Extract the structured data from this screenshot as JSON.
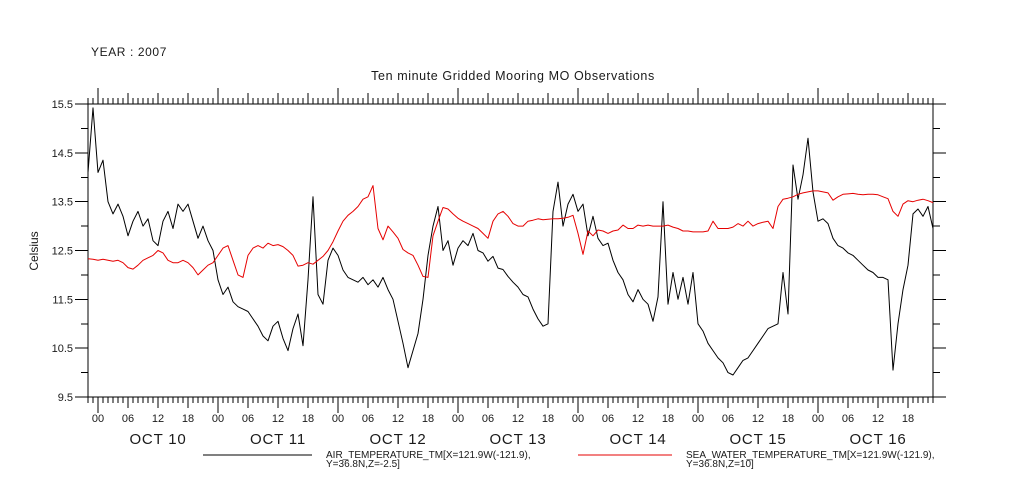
{
  "header": {
    "year_label": "YEAR : 2007",
    "title": "Ten minute Gridded Mooring MO Observations"
  },
  "y_axis": {
    "label": "Celsius",
    "min": 9.5,
    "max": 15.5,
    "major_tick_step": 1.0,
    "minor_tick_step": 0.5,
    "tick_labels": [
      "9.5",
      "10.5",
      "11.5",
      "12.5",
      "13.5",
      "14.5",
      "15.5"
    ]
  },
  "x_axis": {
    "hour_tick_labels": [
      "00",
      "06",
      "12",
      "18"
    ],
    "day_labels": [
      "OCT 10",
      "OCT 11",
      "OCT 12",
      "OCT 13",
      "OCT 14",
      "OCT 15",
      "OCT 16"
    ],
    "minor_tick_interval_hours": 1,
    "labeled_tick_interval_hours": 6
  },
  "legend": {
    "air": {
      "label_line1": "AIR_TEMPERATURE_TM[X=121.9W(-121.9),",
      "label_line2": "Y=36.8N,Z=-2.5]",
      "color": "#000000"
    },
    "sea": {
      "label_line1": "SEA_WATER_TEMPERATURE_TM[X=121.9W(-121.9),",
      "label_line2": "Y=36.8N,Z=10]",
      "color": "#e60000"
    }
  },
  "colors": {
    "air": "#000000",
    "sea": "#e60000",
    "axis": "#000000",
    "background": "#ffffff"
  },
  "chart_data": {
    "type": "line",
    "title": "Ten minute Gridded Mooring MO Observations",
    "ylabel": "Celsius",
    "ylim": [
      9.5,
      15.5
    ],
    "x_unit": "hours since 2007-10-10 00:00",
    "x_start": -2,
    "x_step": 1,
    "x_end": 167,
    "grid": false,
    "legend_position": "bottom",
    "series": [
      {
        "name": "AIR_TEMPERATURE_TM[X=121.9W(-121.9), Y=36.8N,Z=-2.5]",
        "color": "#000000",
        "values": [
          14.1,
          15.42,
          14.1,
          14.35,
          13.5,
          13.25,
          13.45,
          13.2,
          12.8,
          13.1,
          13.3,
          13.0,
          13.15,
          12.7,
          12.6,
          13.1,
          13.3,
          12.95,
          13.45,
          13.3,
          13.45,
          13.1,
          12.75,
          13.0,
          12.7,
          12.5,
          11.9,
          11.6,
          11.75,
          11.45,
          11.35,
          11.3,
          11.25,
          11.1,
          10.95,
          10.75,
          10.65,
          10.95,
          11.05,
          10.7,
          10.45,
          10.9,
          11.2,
          10.55,
          11.9,
          13.6,
          11.6,
          11.4,
          12.3,
          12.55,
          12.4,
          12.1,
          11.95,
          11.9,
          11.85,
          11.95,
          11.8,
          11.9,
          11.75,
          11.95,
          11.7,
          11.5,
          11.05,
          10.6,
          10.1,
          10.45,
          10.8,
          11.5,
          12.4,
          13.0,
          13.4,
          12.5,
          12.7,
          12.2,
          12.55,
          12.7,
          12.6,
          12.85,
          12.5,
          12.45,
          12.28,
          12.38,
          12.14,
          12.11,
          11.97,
          11.85,
          11.75,
          11.6,
          11.55,
          11.3,
          11.1,
          10.95,
          11.0,
          13.3,
          13.9,
          13.0,
          13.45,
          13.65,
          13.3,
          13.45,
          12.8,
          13.2,
          12.75,
          12.6,
          12.65,
          12.3,
          12.05,
          11.9,
          11.6,
          11.45,
          11.7,
          11.5,
          11.4,
          11.05,
          11.55,
          13.5,
          11.4,
          12.05,
          11.5,
          11.95,
          11.4,
          12.05,
          11.0,
          10.85,
          10.6,
          10.45,
          10.3,
          10.2,
          10.0,
          9.95,
          10.1,
          10.25,
          10.3,
          10.45,
          10.6,
          10.75,
          10.9,
          10.95,
          11.0,
          12.05,
          11.2,
          14.25,
          13.55,
          14.05,
          14.8,
          13.7,
          13.1,
          13.15,
          13.05,
          12.75,
          12.6,
          12.55,
          12.45,
          12.4,
          12.3,
          12.2,
          12.1,
          12.05,
          11.95,
          11.95,
          11.9,
          10.05,
          11.0,
          11.7,
          12.2,
          13.25,
          13.35,
          13.2,
          13.4,
          12.95
        ]
      },
      {
        "name": "SEA_WATER_TEMPERATURE_TM[X=121.9W(-121.9), Y=36.8N,Z=10]",
        "color": "#e60000",
        "values": [
          12.33,
          12.32,
          12.3,
          12.32,
          12.3,
          12.28,
          12.3,
          12.25,
          12.15,
          12.12,
          12.2,
          12.3,
          12.35,
          12.4,
          12.5,
          12.45,
          12.3,
          12.25,
          12.25,
          12.3,
          12.25,
          12.15,
          12.0,
          12.1,
          12.2,
          12.25,
          12.4,
          12.55,
          12.6,
          12.3,
          12.0,
          11.95,
          12.4,
          12.55,
          12.6,
          12.55,
          12.65,
          12.6,
          12.62,
          12.58,
          12.5,
          12.4,
          12.18,
          12.2,
          12.25,
          12.22,
          12.3,
          12.38,
          12.5,
          12.68,
          12.9,
          13.1,
          13.22,
          13.3,
          13.4,
          13.55,
          13.6,
          13.83,
          12.95,
          12.72,
          13.0,
          12.88,
          12.75,
          12.52,
          12.45,
          12.4,
          12.2,
          11.97,
          11.95,
          12.8,
          13.1,
          13.38,
          13.35,
          13.25,
          13.16,
          13.1,
          13.05,
          13.0,
          12.95,
          12.85,
          12.75,
          13.1,
          13.25,
          13.3,
          13.2,
          13.05,
          13.0,
          13.0,
          13.1,
          13.12,
          13.15,
          13.13,
          13.14,
          13.15,
          13.15,
          13.16,
          13.18,
          13.22,
          12.85,
          12.42,
          12.9,
          12.8,
          12.92,
          12.9,
          12.85,
          12.9,
          12.92,
          13.02,
          12.95,
          12.95,
          13.02,
          13.0,
          13.02,
          13.0,
          13.0,
          13.0,
          13.02,
          12.98,
          12.95,
          12.9,
          12.9,
          12.88,
          12.88,
          12.88,
          12.9,
          13.1,
          12.95,
          12.95,
          12.95,
          12.98,
          13.05,
          13.0,
          13.1,
          13.0,
          13.05,
          13.08,
          13.1,
          12.95,
          13.4,
          13.55,
          13.57,
          13.6,
          13.65,
          13.68,
          13.7,
          13.72,
          13.72,
          13.7,
          13.68,
          13.53,
          13.6,
          13.65,
          13.66,
          13.67,
          13.65,
          13.64,
          13.65,
          13.65,
          13.64,
          13.6,
          13.56,
          13.3,
          13.2,
          13.45,
          13.52,
          13.5,
          13.53,
          13.55,
          13.52,
          13.48
        ]
      }
    ]
  }
}
